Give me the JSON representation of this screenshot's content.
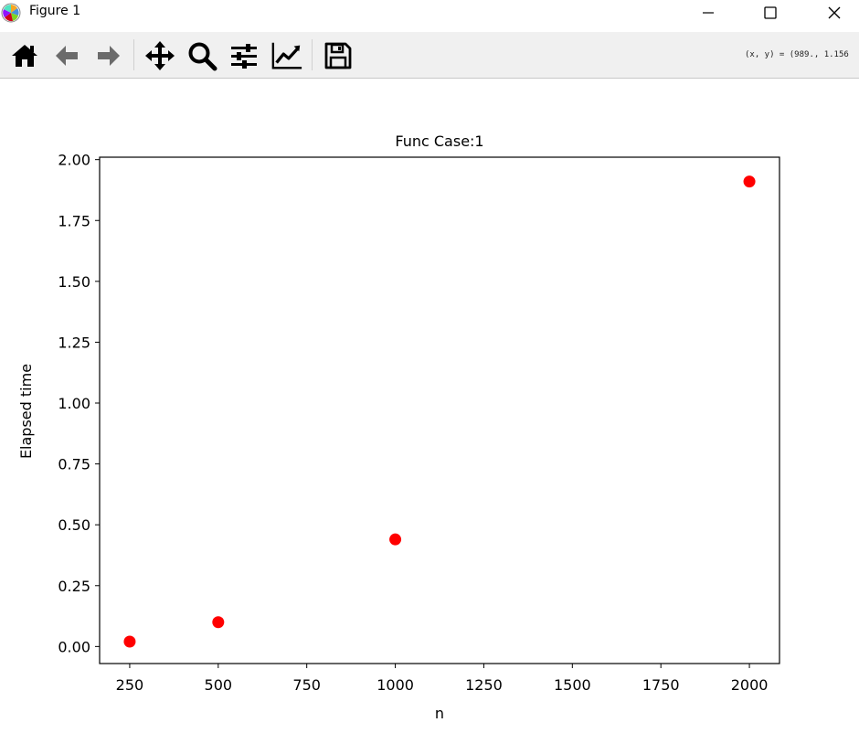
{
  "window": {
    "title": "Figure 1",
    "icon": "matplotlib-logo-icon",
    "controls": [
      "minimize-icon",
      "maximize-icon",
      "close-icon"
    ]
  },
  "toolbar": {
    "buttons": [
      {
        "name": "home-button",
        "icon": "home-icon"
      },
      {
        "name": "back-button",
        "icon": "arrow-left-icon"
      },
      {
        "name": "forward-button",
        "icon": "arrow-right-icon"
      },
      {
        "name": "pan-button",
        "icon": "move-icon"
      },
      {
        "name": "zoom-button",
        "icon": "magnifier-icon"
      },
      {
        "name": "configure-subplots-button",
        "icon": "sliders-icon"
      },
      {
        "name": "edit-axis-button",
        "icon": "line-chart-icon"
      },
      {
        "name": "save-button",
        "icon": "floppy-disk-icon"
      }
    ],
    "coords_text": "(x, y) = (989., 1.156"
  },
  "chart_data": {
    "type": "scatter",
    "title": "Func Case:1",
    "xlabel": "n",
    "ylabel": "Elapsed time",
    "xlim": [
      165,
      2085
    ],
    "ylim": [
      -0.07,
      2.01
    ],
    "x_ticks": [
      250,
      500,
      750,
      1000,
      1250,
      1500,
      1750,
      2000
    ],
    "y_ticks": [
      0.0,
      0.25,
      0.5,
      0.75,
      1.0,
      1.25,
      1.5,
      1.75,
      2.0
    ],
    "y_tick_labels": [
      "0.00",
      "0.25",
      "0.50",
      "0.75",
      "1.00",
      "1.25",
      "1.50",
      "1.75",
      "2.00"
    ],
    "grid": false,
    "series": [
      {
        "color": "#ff0000",
        "marker": "circle",
        "points": [
          {
            "x": 250,
            "y": 0.02
          },
          {
            "x": 500,
            "y": 0.1
          },
          {
            "x": 1000,
            "y": 0.44
          },
          {
            "x": 2000,
            "y": 1.91
          }
        ]
      }
    ]
  }
}
